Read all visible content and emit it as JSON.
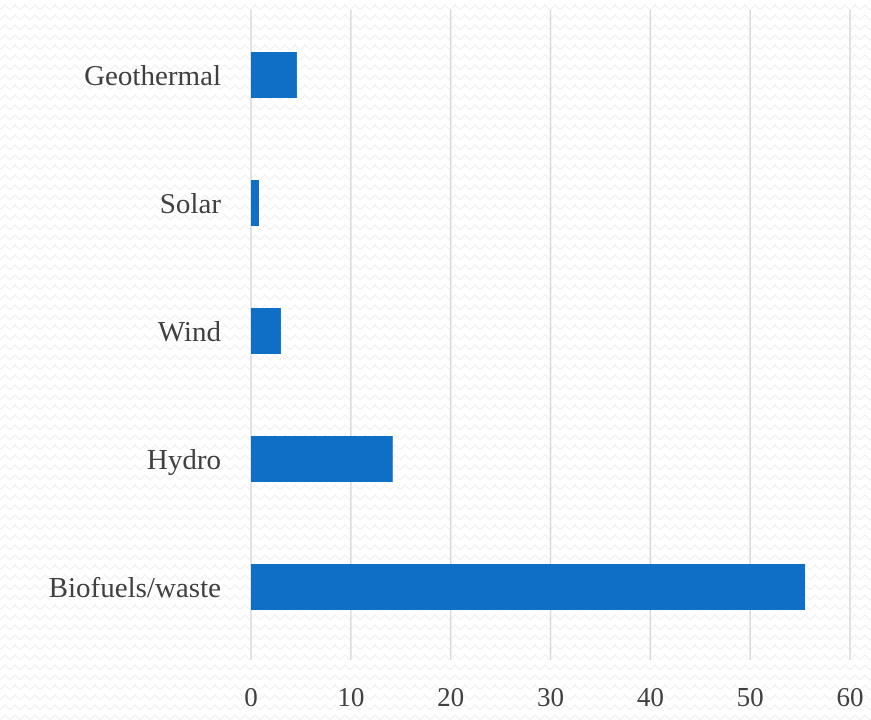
{
  "chart_data": {
    "type": "bar",
    "orientation": "horizontal",
    "categories": [
      "Geothermal",
      "Solar",
      "Wind",
      "Hydro",
      "Biofuels/waste"
    ],
    "series": [
      {
        "values": [
          4.6,
          0.8,
          3.0,
          14.2,
          55.5
        ]
      }
    ],
    "x_ticks": [
      "0",
      "10",
      "20",
      "30",
      "40",
      "50",
      "60"
    ],
    "xlim": [
      0,
      60
    ],
    "title": "",
    "xlabel": "",
    "ylabel": "",
    "grid": "vertical",
    "legend": "none",
    "colors": {
      "bar": "#0f6fc6",
      "grid": "#d9d9d9",
      "text": "#404040",
      "pattern": "#eeeeee"
    }
  }
}
